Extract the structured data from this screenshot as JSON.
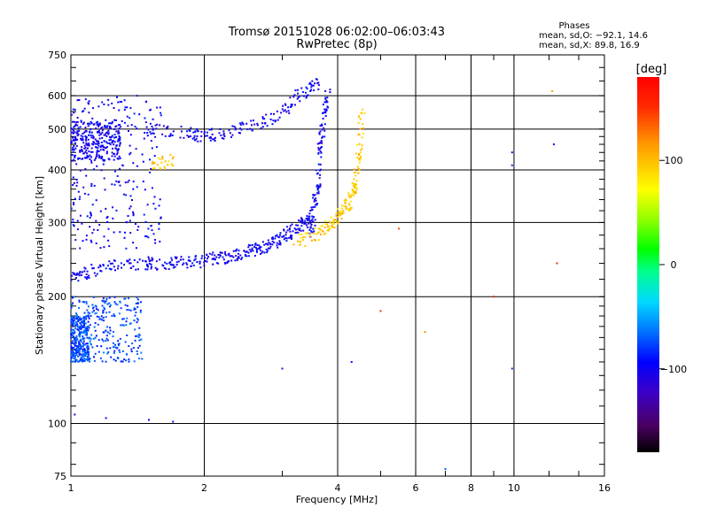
{
  "chart_data": {
    "type": "scatter",
    "title": "Tromsø 20151028 06:02:00–06:03:43",
    "subtitle": "RwPretec (8p)",
    "xlabel": "Frequency [MHz]",
    "ylabel": "Stationary phase Virtual Height [km]",
    "x_scale": "log",
    "y_scale": "log",
    "xlim": [
      1,
      16
    ],
    "ylim": [
      75,
      750
    ],
    "x_ticks": [
      "1",
      "2",
      "4",
      "6",
      "8",
      "10",
      "16"
    ],
    "y_ticks": [
      "75",
      "100",
      "200",
      "300",
      "400",
      "500",
      "600",
      "750"
    ],
    "x_gridlines": [
      2,
      4,
      6,
      8,
      10
    ],
    "y_gridlines": [
      100,
      200,
      300,
      400,
      500,
      600
    ],
    "grid": true,
    "legend": {
      "title": "Phases",
      "lines": [
        "mean, sd,O: −92.1, 14.6",
        "mean, sd,X:  89.8, 16.9"
      ],
      "position": "top-right"
    },
    "colorbar": {
      "label": "[deg]",
      "ticks": [
        "100",
        "0",
        "−100"
      ],
      "tick_values": [
        100,
        0,
        -100
      ],
      "range": [
        -180,
        180
      ]
    },
    "traces": [
      {
        "name": "O",
        "phase": -100,
        "x": [
          1.0,
          1.05,
          1.1,
          1.2,
          1.3,
          1.4,
          1.5,
          1.6,
          1.7,
          1.8,
          1.9,
          2.0,
          2.1,
          2.2,
          2.3,
          2.4,
          2.5,
          2.6,
          2.7,
          2.8,
          2.9,
          3.0,
          3.1,
          3.2,
          3.3,
          3.4,
          3.5
        ],
        "y": [
          220,
          225,
          230,
          235,
          238,
          240,
          240,
          240,
          240,
          241,
          242,
          244,
          246,
          248,
          250,
          252,
          255,
          258,
          262,
          266,
          270,
          276,
          283,
          290,
          295,
          300,
          305
        ]
      },
      {
        "name": "O",
        "phase": -100,
        "x": [
          1.45,
          1.6,
          1.8,
          1.9,
          2.0,
          2.1,
          2.3,
          2.5,
          2.7,
          2.9,
          3.1,
          3.3,
          3.5,
          3.6
        ],
        "y": [
          498,
          495,
          490,
          485,
          480,
          485,
          495,
          505,
          520,
          540,
          570,
          605,
          630,
          645
        ]
      },
      {
        "name": "O",
        "phase": -100,
        "x": [
          3.45,
          3.5,
          3.55,
          3.6,
          3.62,
          3.65,
          3.7,
          3.75,
          3.8
        ],
        "y": [
          280,
          300,
          330,
          360,
          400,
          450,
          500,
          560,
          620
        ]
      },
      {
        "name": "X",
        "phase": 95,
        "x": [
          3.2,
          3.4,
          3.6,
          3.8,
          3.9,
          4.0,
          4.1,
          4.2,
          4.3,
          4.35,
          4.4,
          4.45,
          4.5,
          4.55
        ],
        "y": [
          270,
          274,
          282,
          292,
          300,
          310,
          320,
          330,
          345,
          360,
          380,
          420,
          480,
          560
        ]
      },
      {
        "name": "X",
        "phase": 95,
        "x": [
          1.5,
          1.6,
          1.7
        ],
        "y": [
          410,
          415,
          420
        ]
      }
    ],
    "clusters": [
      {
        "phase": -100,
        "x": [
          1.0,
          1.6
        ],
        "y": [
          260,
          600
        ]
      },
      {
        "phase": -100,
        "x": [
          1.0,
          1.3
        ],
        "y": [
          420,
          520
        ]
      },
      {
        "phase": -75,
        "x": [
          1.0,
          1.45
        ],
        "y": [
          140,
          200
        ]
      },
      {
        "phase": -75,
        "x": [
          1.0,
          1.1
        ],
        "y": [
          140,
          180
        ]
      }
    ],
    "isolated_points": [
      {
        "x": 1.02,
        "y": 105,
        "phase": -110
      },
      {
        "x": 1.2,
        "y": 103,
        "phase": -110
      },
      {
        "x": 1.5,
        "y": 102,
        "phase": -110
      },
      {
        "x": 1.7,
        "y": 101,
        "phase": -90
      },
      {
        "x": 3.0,
        "y": 135,
        "phase": -120
      },
      {
        "x": 4.3,
        "y": 140,
        "phase": -90
      },
      {
        "x": 6.3,
        "y": 165,
        "phase": 120
      },
      {
        "x": 7.0,
        "y": 78,
        "phase": -70
      },
      {
        "x": 9.0,
        "y": 200,
        "phase": 160
      },
      {
        "x": 9.9,
        "y": 410,
        "phase": -80
      },
      {
        "x": 9.9,
        "y": 440,
        "phase": -90
      },
      {
        "x": 9.9,
        "y": 135,
        "phase": -80
      },
      {
        "x": 12.3,
        "y": 460,
        "phase": -110
      },
      {
        "x": 12.5,
        "y": 240,
        "phase": 160
      },
      {
        "x": 12.2,
        "y": 615,
        "phase": 110
      },
      {
        "x": 5.0,
        "y": 185,
        "phase": 150
      },
      {
        "x": 5.5,
        "y": 290,
        "phase": 140
      }
    ]
  }
}
